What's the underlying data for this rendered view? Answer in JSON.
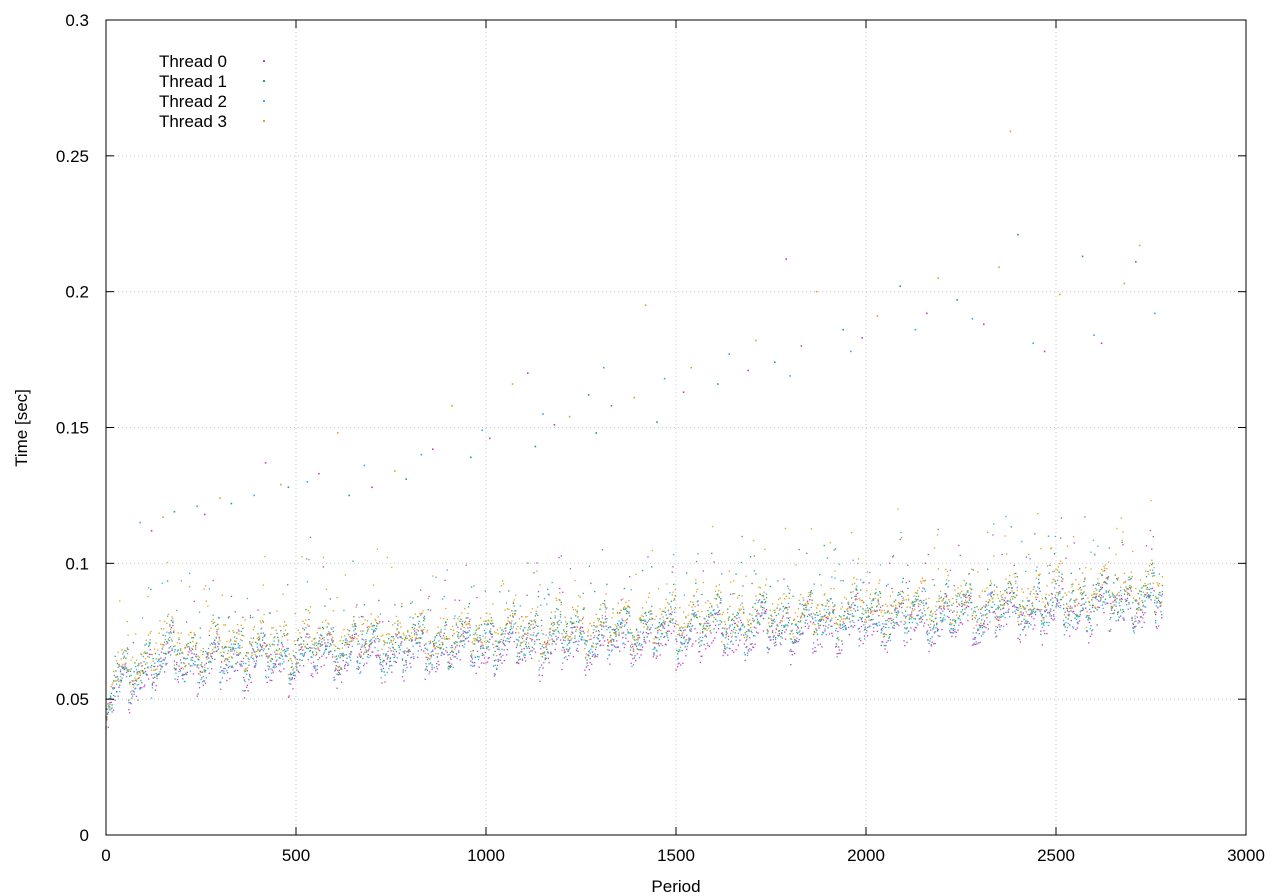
{
  "chart_data": {
    "type": "scatter",
    "title": "",
    "xlabel": "Period",
    "ylabel": "Time [sec]",
    "xlim": [
      0,
      3000
    ],
    "ylim": [
      0,
      0.3
    ],
    "x_ticks": [
      "0",
      "500",
      "1000",
      "1500",
      "2000",
      "2500",
      "3000"
    ],
    "y_ticks": [
      "0",
      "0.05",
      "0.1",
      "0.15",
      "0.2",
      "0.25",
      "0.3"
    ],
    "grid": true,
    "legend_position": "top-left",
    "period_max": 2780,
    "series": [
      {
        "name": "Thread 0",
        "color": "#c040c0",
        "offset": -0.004,
        "outliers": [
          [
            120,
            0.112
          ],
          [
            260,
            0.118
          ],
          [
            420,
            0.137
          ],
          [
            560,
            0.133
          ],
          [
            700,
            0.128
          ],
          [
            860,
            0.142
          ],
          [
            1010,
            0.146
          ],
          [
            1180,
            0.151
          ],
          [
            1330,
            0.158
          ],
          [
            1520,
            0.163
          ],
          [
            1690,
            0.171
          ],
          [
            1830,
            0.18
          ],
          [
            1990,
            0.183
          ],
          [
            2160,
            0.192
          ],
          [
            2310,
            0.188
          ],
          [
            2470,
            0.178
          ],
          [
            2620,
            0.181
          ],
          [
            1110,
            0.17
          ],
          [
            1790,
            0.212
          ]
        ]
      },
      {
        "name": "Thread 1",
        "color": "#2aa05a",
        "offset": 0.0,
        "outliers": [
          [
            180,
            0.119
          ],
          [
            330,
            0.122
          ],
          [
            480,
            0.128
          ],
          [
            640,
            0.125
          ],
          [
            790,
            0.131
          ],
          [
            960,
            0.139
          ],
          [
            1130,
            0.143
          ],
          [
            1290,
            0.148
          ],
          [
            1450,
            0.152
          ],
          [
            1610,
            0.166
          ],
          [
            1760,
            0.174
          ],
          [
            1940,
            0.186
          ],
          [
            2090,
            0.202
          ],
          [
            2240,
            0.197
          ],
          [
            2400,
            0.221
          ],
          [
            2570,
            0.213
          ],
          [
            2710,
            0.211
          ],
          [
            1270,
            0.162
          ]
        ]
      },
      {
        "name": "Thread 2",
        "color": "#3aa8e8",
        "offset": -0.002,
        "outliers": [
          [
            90,
            0.115
          ],
          [
            240,
            0.121
          ],
          [
            390,
            0.125
          ],
          [
            530,
            0.13
          ],
          [
            680,
            0.136
          ],
          [
            830,
            0.14
          ],
          [
            990,
            0.149
          ],
          [
            1150,
            0.155
          ],
          [
            1310,
            0.172
          ],
          [
            1470,
            0.168
          ],
          [
            1640,
            0.177
          ],
          [
            1800,
            0.169
          ],
          [
            1960,
            0.178
          ],
          [
            2130,
            0.186
          ],
          [
            2280,
            0.19
          ],
          [
            2440,
            0.181
          ],
          [
            2600,
            0.184
          ],
          [
            2760,
            0.192
          ]
        ]
      },
      {
        "name": "Thread 3",
        "color": "#e0a020",
        "offset": 0.003,
        "outliers": [
          [
            150,
            0.117
          ],
          [
            300,
            0.124
          ],
          [
            460,
            0.129
          ],
          [
            610,
            0.148
          ],
          [
            760,
            0.134
          ],
          [
            910,
            0.158
          ],
          [
            1070,
            0.166
          ],
          [
            1220,
            0.154
          ],
          [
            1390,
            0.161
          ],
          [
            1540,
            0.172
          ],
          [
            1710,
            0.182
          ],
          [
            1870,
            0.2
          ],
          [
            2030,
            0.191
          ],
          [
            2190,
            0.205
          ],
          [
            2350,
            0.209
          ],
          [
            2380,
            0.259
          ],
          [
            2510,
            0.199
          ],
          [
            2680,
            0.203
          ],
          [
            2720,
            0.217
          ],
          [
            1420,
            0.195
          ]
        ]
      }
    ]
  }
}
